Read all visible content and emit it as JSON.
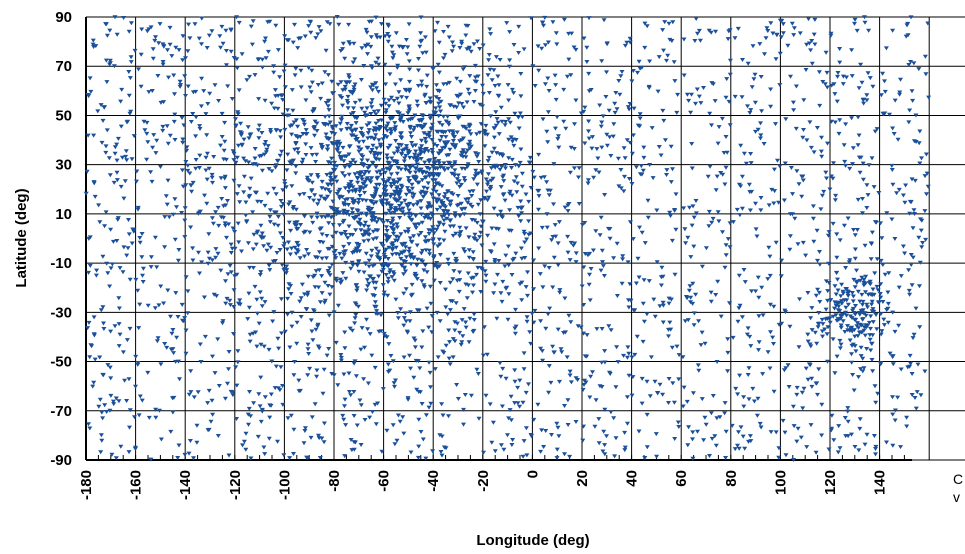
{
  "chart_data": {
    "type": "scatter",
    "xlabel": "Longitude  (deg)",
    "ylabel": "Latitude  (deg)",
    "xlim": [
      -180,
      160
    ],
    "ylim": [
      -90,
      90
    ],
    "x_ticks": [
      -180,
      -160,
      -140,
      -120,
      -100,
      -80,
      -60,
      -40,
      -20,
      0,
      20,
      40,
      60,
      80,
      100,
      120,
      140
    ],
    "x_tick_labels": [
      "-180",
      "-160",
      "-140",
      "-120",
      "-100",
      "-80",
      "-60",
      "-40",
      "-20",
      "0",
      "20",
      "40",
      "60",
      "80",
      "100",
      "120",
      "140"
    ],
    "y_ticks": [
      90,
      70,
      50,
      30,
      10,
      -10,
      -30,
      -50,
      -70,
      -90
    ],
    "y_tick_labels": [
      "90",
      "70",
      "50",
      "30",
      "10",
      "-10",
      "-30",
      "-50",
      "-70",
      "-90"
    ],
    "grid": true,
    "marker": "down-triangle",
    "marker_color": "#1a4f99",
    "legend_fragments": [
      "C",
      "v"
    ],
    "series": [
      {
        "clusters": [
          {
            "center": [
              -52,
              25
            ],
            "spread": [
              22,
              22
            ],
            "points": 900
          },
          {
            "center": [
              -60,
              10
            ],
            "spread": [
              35,
              30
            ],
            "points": 500
          },
          {
            "center": [
              128,
              -30
            ],
            "spread": [
              7,
              7
            ],
            "points": 160
          },
          {
            "center": [
              -110,
              40
            ],
            "spread": [
              25,
              25
            ],
            "points": 120
          }
        ],
        "background_points": 2400
      }
    ]
  }
}
